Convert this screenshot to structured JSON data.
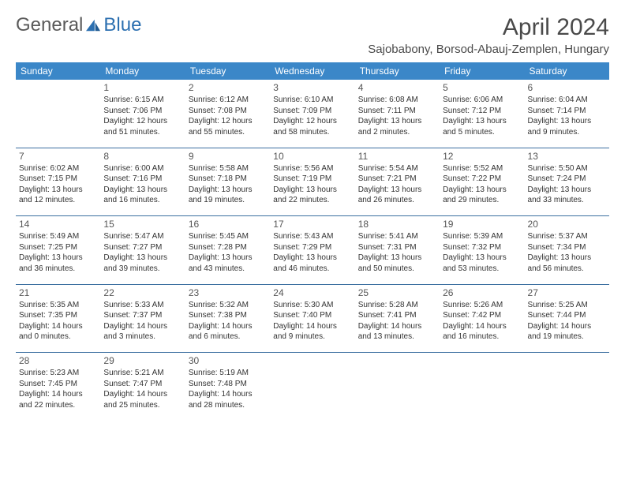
{
  "logo": {
    "part1": "General",
    "part2": "Blue"
  },
  "title": "April 2024",
  "location": "Sajobabony, Borsod-Abauj-Zemplen, Hungary",
  "day_headers": [
    "Sunday",
    "Monday",
    "Tuesday",
    "Wednesday",
    "Thursday",
    "Friday",
    "Saturday"
  ],
  "colors": {
    "header_bg": "#3b87c8",
    "header_text": "#ffffff",
    "rule": "#3b6fa0",
    "logo_gray": "#5a5a5a",
    "logo_blue": "#2b6fb0"
  },
  "weeks": [
    [
      null,
      {
        "n": "1",
        "sr": "Sunrise: 6:15 AM",
        "ss": "Sunset: 7:06 PM",
        "dl": "Daylight: 12 hours and 51 minutes."
      },
      {
        "n": "2",
        "sr": "Sunrise: 6:12 AM",
        "ss": "Sunset: 7:08 PM",
        "dl": "Daylight: 12 hours and 55 minutes."
      },
      {
        "n": "3",
        "sr": "Sunrise: 6:10 AM",
        "ss": "Sunset: 7:09 PM",
        "dl": "Daylight: 12 hours and 58 minutes."
      },
      {
        "n": "4",
        "sr": "Sunrise: 6:08 AM",
        "ss": "Sunset: 7:11 PM",
        "dl": "Daylight: 13 hours and 2 minutes."
      },
      {
        "n": "5",
        "sr": "Sunrise: 6:06 AM",
        "ss": "Sunset: 7:12 PM",
        "dl": "Daylight: 13 hours and 5 minutes."
      },
      {
        "n": "6",
        "sr": "Sunrise: 6:04 AM",
        "ss": "Sunset: 7:14 PM",
        "dl": "Daylight: 13 hours and 9 minutes."
      }
    ],
    [
      {
        "n": "7",
        "sr": "Sunrise: 6:02 AM",
        "ss": "Sunset: 7:15 PM",
        "dl": "Daylight: 13 hours and 12 minutes."
      },
      {
        "n": "8",
        "sr": "Sunrise: 6:00 AM",
        "ss": "Sunset: 7:16 PM",
        "dl": "Daylight: 13 hours and 16 minutes."
      },
      {
        "n": "9",
        "sr": "Sunrise: 5:58 AM",
        "ss": "Sunset: 7:18 PM",
        "dl": "Daylight: 13 hours and 19 minutes."
      },
      {
        "n": "10",
        "sr": "Sunrise: 5:56 AM",
        "ss": "Sunset: 7:19 PM",
        "dl": "Daylight: 13 hours and 22 minutes."
      },
      {
        "n": "11",
        "sr": "Sunrise: 5:54 AM",
        "ss": "Sunset: 7:21 PM",
        "dl": "Daylight: 13 hours and 26 minutes."
      },
      {
        "n": "12",
        "sr": "Sunrise: 5:52 AM",
        "ss": "Sunset: 7:22 PM",
        "dl": "Daylight: 13 hours and 29 minutes."
      },
      {
        "n": "13",
        "sr": "Sunrise: 5:50 AM",
        "ss": "Sunset: 7:24 PM",
        "dl": "Daylight: 13 hours and 33 minutes."
      }
    ],
    [
      {
        "n": "14",
        "sr": "Sunrise: 5:49 AM",
        "ss": "Sunset: 7:25 PM",
        "dl": "Daylight: 13 hours and 36 minutes."
      },
      {
        "n": "15",
        "sr": "Sunrise: 5:47 AM",
        "ss": "Sunset: 7:27 PM",
        "dl": "Daylight: 13 hours and 39 minutes."
      },
      {
        "n": "16",
        "sr": "Sunrise: 5:45 AM",
        "ss": "Sunset: 7:28 PM",
        "dl": "Daylight: 13 hours and 43 minutes."
      },
      {
        "n": "17",
        "sr": "Sunrise: 5:43 AM",
        "ss": "Sunset: 7:29 PM",
        "dl": "Daylight: 13 hours and 46 minutes."
      },
      {
        "n": "18",
        "sr": "Sunrise: 5:41 AM",
        "ss": "Sunset: 7:31 PM",
        "dl": "Daylight: 13 hours and 50 minutes."
      },
      {
        "n": "19",
        "sr": "Sunrise: 5:39 AM",
        "ss": "Sunset: 7:32 PM",
        "dl": "Daylight: 13 hours and 53 minutes."
      },
      {
        "n": "20",
        "sr": "Sunrise: 5:37 AM",
        "ss": "Sunset: 7:34 PM",
        "dl": "Daylight: 13 hours and 56 minutes."
      }
    ],
    [
      {
        "n": "21",
        "sr": "Sunrise: 5:35 AM",
        "ss": "Sunset: 7:35 PM",
        "dl": "Daylight: 14 hours and 0 minutes."
      },
      {
        "n": "22",
        "sr": "Sunrise: 5:33 AM",
        "ss": "Sunset: 7:37 PM",
        "dl": "Daylight: 14 hours and 3 minutes."
      },
      {
        "n": "23",
        "sr": "Sunrise: 5:32 AM",
        "ss": "Sunset: 7:38 PM",
        "dl": "Daylight: 14 hours and 6 minutes."
      },
      {
        "n": "24",
        "sr": "Sunrise: 5:30 AM",
        "ss": "Sunset: 7:40 PM",
        "dl": "Daylight: 14 hours and 9 minutes."
      },
      {
        "n": "25",
        "sr": "Sunrise: 5:28 AM",
        "ss": "Sunset: 7:41 PM",
        "dl": "Daylight: 14 hours and 13 minutes."
      },
      {
        "n": "26",
        "sr": "Sunrise: 5:26 AM",
        "ss": "Sunset: 7:42 PM",
        "dl": "Daylight: 14 hours and 16 minutes."
      },
      {
        "n": "27",
        "sr": "Sunrise: 5:25 AM",
        "ss": "Sunset: 7:44 PM",
        "dl": "Daylight: 14 hours and 19 minutes."
      }
    ],
    [
      {
        "n": "28",
        "sr": "Sunrise: 5:23 AM",
        "ss": "Sunset: 7:45 PM",
        "dl": "Daylight: 14 hours and 22 minutes."
      },
      {
        "n": "29",
        "sr": "Sunrise: 5:21 AM",
        "ss": "Sunset: 7:47 PM",
        "dl": "Daylight: 14 hours and 25 minutes."
      },
      {
        "n": "30",
        "sr": "Sunrise: 5:19 AM",
        "ss": "Sunset: 7:48 PM",
        "dl": "Daylight: 14 hours and 28 minutes."
      },
      null,
      null,
      null,
      null
    ]
  ]
}
